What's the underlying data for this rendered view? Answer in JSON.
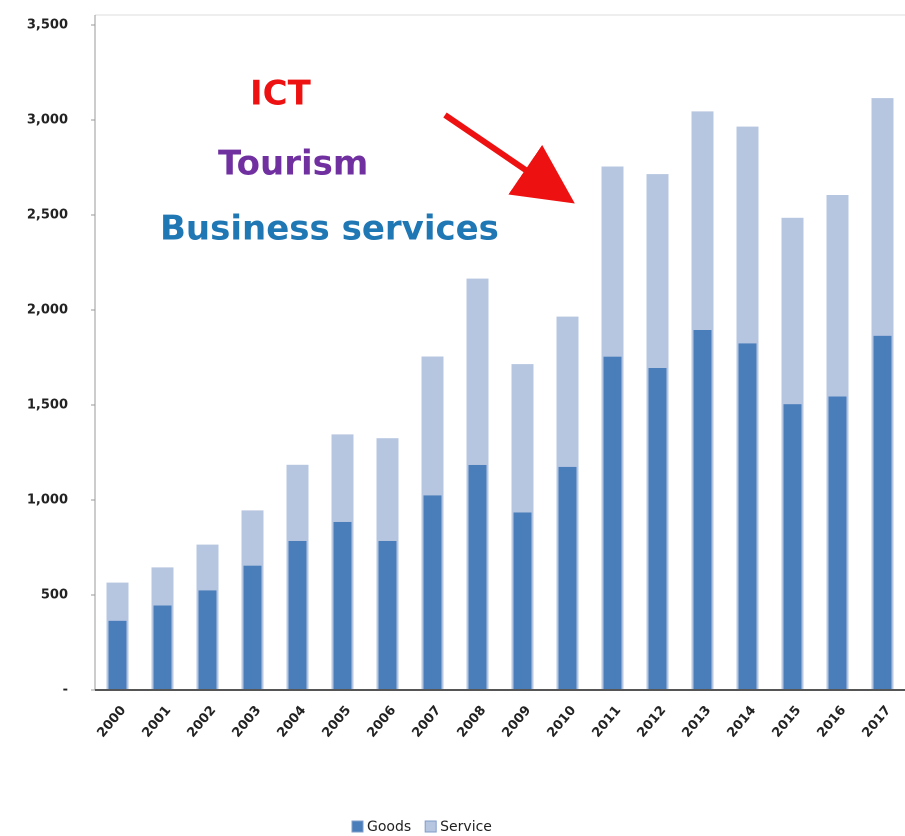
{
  "chart_data": {
    "type": "stacked_bar",
    "categories": [
      "2000",
      "2001",
      "2002",
      "2003",
      "2004",
      "2005",
      "2006",
      "2007",
      "2008",
      "2009",
      "2010",
      "2011",
      "2012",
      "2013",
      "2014",
      "2015",
      "2016",
      "2017"
    ],
    "series": [
      {
        "name": "Goods",
        "color": "#4a7ebb",
        "values": [
          370,
          450,
          530,
          660,
          790,
          890,
          790,
          1030,
          1190,
          940,
          1180,
          1760,
          1700,
          1900,
          1830,
          1510,
          1550,
          1870
        ]
      },
      {
        "name": "Service",
        "color": "#b7c6e0",
        "values": [
          190,
          190,
          230,
          280,
          390,
          450,
          530,
          720,
          970,
          770,
          780,
          990,
          1010,
          1140,
          1130,
          970,
          1050,
          1240
        ]
      }
    ],
    "ylim": [
      0,
      3500
    ],
    "yticks": [
      {
        "value": 0,
        "label": "-"
      },
      500,
      {
        "value": 1000,
        "label": "1,000"
      },
      {
        "value": 1500,
        "label": "1,500"
      },
      {
        "value": 2000,
        "label": "2,000"
      },
      {
        "value": 2500,
        "label": "2,500"
      },
      {
        "value": 3000,
        "label": "3,000"
      },
      {
        "value": 3500,
        "label": "3,500"
      }
    ],
    "annotations": [
      {
        "text": "ICT",
        "color": "#ee1111"
      },
      {
        "text": "Tourism",
        "color": "#7030a0"
      },
      {
        "text": "Business services",
        "color": "#1f77b4"
      }
    ],
    "legend": "bottom"
  }
}
